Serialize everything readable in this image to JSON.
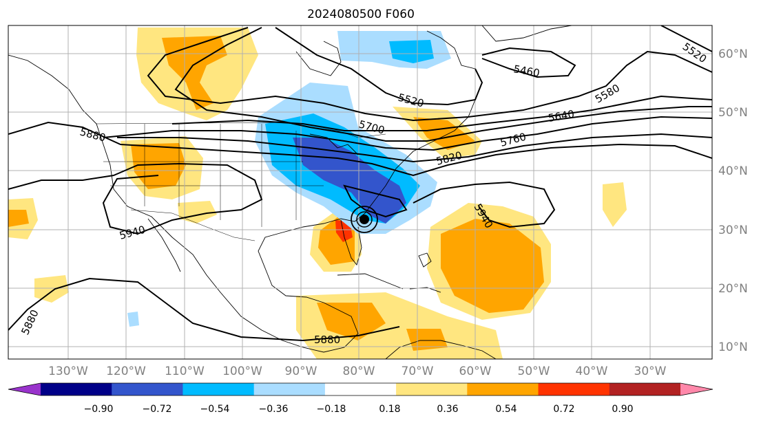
{
  "title": "2024080500 F060",
  "lon_labels": [
    "130°W",
    "120°W",
    "110°W",
    "100°W",
    "90°W",
    "80°W",
    "70°W",
    "60°W",
    "50°W",
    "40°W",
    "30°W"
  ],
  "lat_labels": [
    "60°N",
    "50°N",
    "40°N",
    "30°N",
    "20°N",
    "10°N"
  ],
  "colorbar": {
    "ticks": [
      "−0.90",
      "−0.72",
      "−0.54",
      "−0.36",
      "−0.18",
      "0.18",
      "0.36",
      "0.54",
      "0.72",
      "0.90"
    ],
    "colors": [
      "#9933cc",
      "#000088",
      "#3355cc",
      "#00bbff",
      "#aaddff",
      "#ffffff",
      "#ffe680",
      "#ffa500",
      "#ff3300",
      "#b22222",
      "#ff88aa"
    ]
  },
  "contour_labels": [
    "5520",
    "5460",
    "5520",
    "5580",
    "5640",
    "5700",
    "5760",
    "5820",
    "5880",
    "5940",
    "5940",
    "5880",
    "5880"
  ],
  "colors": {
    "coast": "#000000",
    "grid": "#b0b0b0",
    "contour": "#000000"
  },
  "storm_icon": "hurricane-icon"
}
